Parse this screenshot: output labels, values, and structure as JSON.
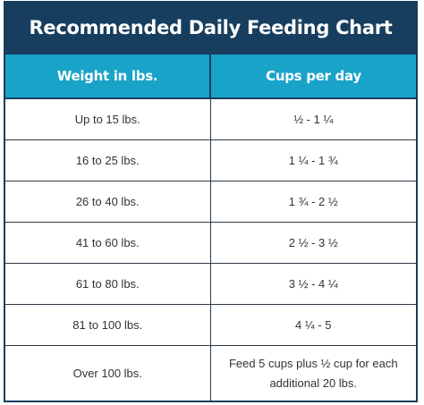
{
  "chart": {
    "title": "Recommended Daily Feeding Chart",
    "columns": [
      "Weight in lbs.",
      "Cups per day"
    ],
    "rows": [
      {
        "weight": "Up to 15 lbs.",
        "cups": "½ - 1 ¼"
      },
      {
        "weight": "16 to 25 lbs.",
        "cups": "1 ¼ - 1 ¾"
      },
      {
        "weight": "26 to 40 lbs.",
        "cups": "1 ¾ - 2 ½"
      },
      {
        "weight": "41 to 60 lbs.",
        "cups": "2 ½ - 3 ½"
      },
      {
        "weight": "61 to 80 lbs.",
        "cups": "3 ½ - 4 ¼"
      },
      {
        "weight": "81 to 100 lbs.",
        "cups": "4 ¼ - 5"
      },
      {
        "weight": "Over 100 lbs.",
        "cups": "Feed 5 cups plus ½ cup for each additional 20 lbs."
      }
    ]
  },
  "colors": {
    "title_background": "#173e5e",
    "header_background": "#1aa3c9",
    "text": "#333333"
  }
}
